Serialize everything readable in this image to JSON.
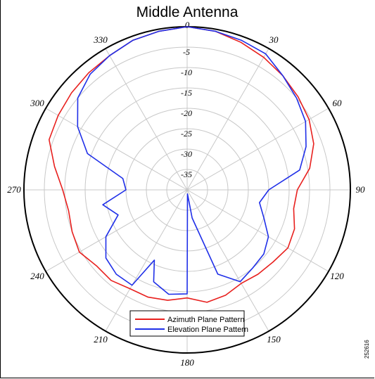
{
  "chart_data": {
    "type": "polar_line",
    "title": "Middle Antenna",
    "figure_id": "252616",
    "angle_ticks": [
      "0",
      "30",
      "60",
      "90",
      "120",
      "150",
      "180",
      "210",
      "240",
      "270",
      "300",
      "330"
    ],
    "radial_ticks": [
      "0",
      "-5",
      "-10",
      "-15",
      "-20",
      "-25",
      "-30",
      "-35"
    ],
    "radial_range": [
      -40,
      0
    ],
    "angle_step_deg": 30,
    "grid": true,
    "legend_position": "bottom-center",
    "series": [
      {
        "name": "Azimuth Plane Pattern",
        "color": "#e8201e",
        "points": [
          [
            0,
            0
          ],
          [
            10,
            -0.5
          ],
          [
            20,
            -1.5
          ],
          [
            30,
            -2.5
          ],
          [
            40,
            -3.5
          ],
          [
            50,
            -4.5
          ],
          [
            60,
            -5.5
          ],
          [
            70,
            -7
          ],
          [
            80,
            -9.5
          ],
          [
            90,
            -13
          ],
          [
            100,
            -13.5
          ],
          [
            110,
            -12
          ],
          [
            120,
            -11.5
          ],
          [
            130,
            -12.5
          ],
          [
            140,
            -13
          ],
          [
            150,
            -13.5
          ],
          [
            160,
            -12.5
          ],
          [
            170,
            -12
          ],
          [
            180,
            -13.5
          ],
          [
            190,
            -12.5
          ],
          [
            200,
            -12
          ],
          [
            210,
            -12
          ],
          [
            220,
            -11
          ],
          [
            230,
            -11
          ],
          [
            240,
            -9.5
          ],
          [
            250,
            -10
          ],
          [
            260,
            -10.5
          ],
          [
            270,
            -9.5
          ],
          [
            280,
            -7
          ],
          [
            290,
            -4
          ],
          [
            300,
            -3.5
          ],
          [
            310,
            -3
          ],
          [
            320,
            -2.5
          ],
          [
            330,
            -2
          ],
          [
            340,
            -1
          ],
          [
            350,
            -0.5
          ],
          [
            360,
            0
          ]
        ]
      },
      {
        "name": "Elevation Plane Pattern",
        "color": "#1f2fe8",
        "points": [
          [
            0,
            0
          ],
          [
            10,
            -0.5
          ],
          [
            20,
            -1
          ],
          [
            30,
            -1.5
          ],
          [
            40,
            -3.5
          ],
          [
            50,
            -5
          ],
          [
            60,
            -6.5
          ],
          [
            70,
            -9
          ],
          [
            80,
            -12
          ],
          [
            90,
            -20
          ],
          [
            100,
            -22
          ],
          [
            110,
            -20
          ],
          [
            120,
            -17
          ],
          [
            130,
            -15.5
          ],
          [
            140,
            -15
          ],
          [
            150,
            -14
          ],
          [
            160,
            -18
          ],
          [
            170,
            -33
          ],
          [
            175,
            -39
          ],
          [
            180,
            -14.5
          ],
          [
            190,
            -14
          ],
          [
            200,
            -16
          ],
          [
            205,
            -21
          ],
          [
            210,
            -13
          ],
          [
            220,
            -13
          ],
          [
            230,
            -14
          ],
          [
            240,
            -17
          ],
          [
            250,
            -22
          ],
          [
            260,
            -19
          ],
          [
            270,
            -25
          ],
          [
            280,
            -24
          ],
          [
            290,
            -14
          ],
          [
            300,
            -9
          ],
          [
            310,
            -5
          ],
          [
            320,
            -3
          ],
          [
            330,
            -2
          ],
          [
            340,
            -1
          ],
          [
            350,
            -0.5
          ],
          [
            360,
            0
          ]
        ]
      }
    ]
  }
}
